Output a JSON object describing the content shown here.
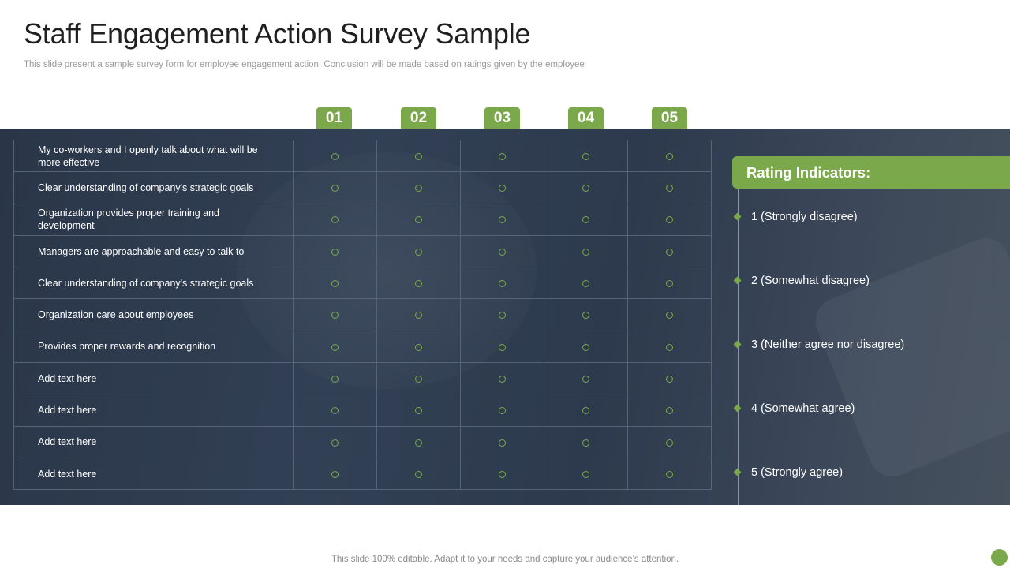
{
  "header": {
    "title": "Staff Engagement Action Survey Sample",
    "subtitle": "This slide present a sample survey form for  employee engagement action. Conclusion will be made based on ratings given by the employee"
  },
  "columns": [
    "01",
    "02",
    "03",
    "04",
    "05"
  ],
  "questions": [
    {
      "text": "My co-workers  and I openly talk about what will be more effective"
    },
    {
      "text": "Clear understanding  of company's strategic goals"
    },
    {
      "text": "Organization provides  proper training and development"
    },
    {
      "text": "Managers  are approachable  and easy to talk to"
    },
    {
      "text": "Clear understanding  of company's strategic goals"
    },
    {
      "text": "Organization  care about  employees"
    },
    {
      "text": "Provides  proper rewards  and recognition"
    },
    {
      "text": "Add text here"
    },
    {
      "text": "Add text here"
    },
    {
      "text": "Add text here"
    },
    {
      "text": "Add text here"
    }
  ],
  "indicators": {
    "title": "Rating Indicators:",
    "items": [
      "1 (Strongly disagree)",
      "2 (Somewhat disagree)",
      "3 (Neither agree nor disagree)",
      "4 (Somewhat agree)",
      "5 (Strongly agree)"
    ]
  },
  "footer": {
    "text": "This slide 100% editable. Adapt it to your needs and capture your audience’s attention."
  },
  "colors": {
    "accent": "#7ba84a",
    "band": "#2f3c50"
  },
  "icons": {
    "radio": "radio-circle-icon",
    "bullet": "diamond-bullet-icon"
  }
}
